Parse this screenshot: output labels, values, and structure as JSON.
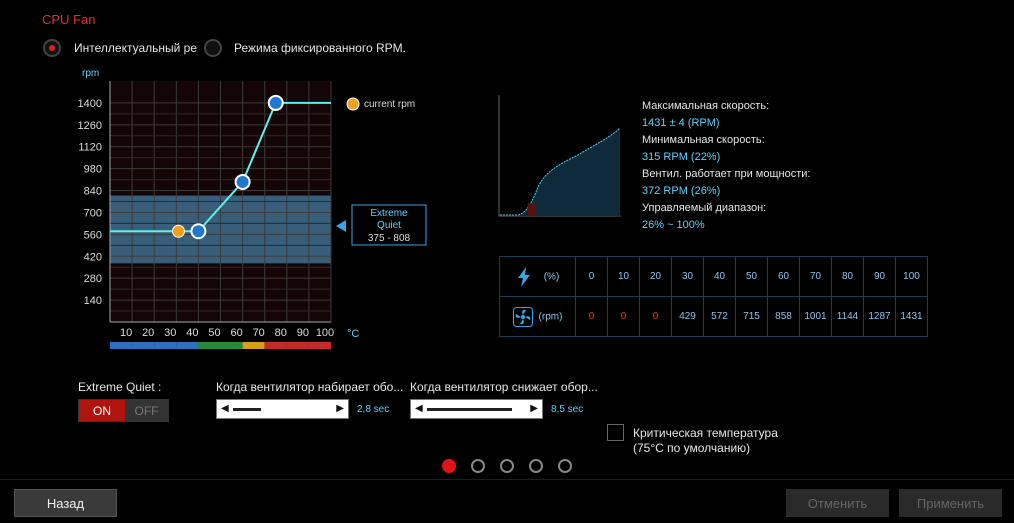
{
  "title": "CPU Fan",
  "modes": [
    {
      "label": "Интеллектуальный ре",
      "selected": true
    },
    {
      "label": "Режима фиксированного RPM.",
      "selected": false
    }
  ],
  "chart_data": {
    "type": "line",
    "ylabel": "rpm",
    "xunit": "°C",
    "yticks": [
      140,
      280,
      420,
      560,
      700,
      840,
      980,
      1120,
      1260,
      1400
    ],
    "xticks": [
      10,
      20,
      30,
      40,
      50,
      60,
      70,
      80,
      90,
      100
    ],
    "xlim": [
      0,
      100
    ],
    "ylim": [
      0,
      1540
    ],
    "series": [
      {
        "points": [
          [
            0,
            580
          ],
          [
            40,
            580
          ],
          [
            60,
            895
          ],
          [
            75,
            1400
          ],
          [
            100,
            1400
          ]
        ]
      }
    ],
    "control_points": [
      [
        40,
        580
      ],
      [
        60,
        895
      ],
      [
        75,
        1400
      ]
    ],
    "current_point": [
      31,
      580
    ],
    "legend": "current rpm",
    "band": {
      "range": [
        375,
        808
      ],
      "label_line1": "Extreme",
      "label_line2": "Quiet",
      "label_range": "375 - 808"
    },
    "temp_bar_colors": [
      "#2f6fc0",
      "#2f6fc0",
      "#2f6fc0",
      "#2f6fc0",
      "#2a8a3a",
      "#2a8a3a",
      "#d7a013",
      "#c42a2a",
      "#c42a2a",
      "#c42a2a"
    ]
  },
  "stats": {
    "max_label": "Максимальная скорость:",
    "max_value": "1431 ± 4 (RPM)",
    "min_label": "Минимальная скорость:",
    "min_value": "315 RPM (22%)",
    "power_label": "Вентил. работает при мощности:",
    "power_value": "372 RPM (26%)",
    "range_label": "Управляемый диапазон:",
    "range_value": "26% ~ 100%"
  },
  "table": {
    "pct_unit": "(%)",
    "rpm_unit": "(rpm)",
    "pct": [
      "0",
      "10",
      "20",
      "30",
      "40",
      "50",
      "60",
      "70",
      "80",
      "90",
      "100"
    ],
    "rpm": [
      "0",
      "0",
      "0",
      "429",
      "572",
      "715",
      "858",
      "1001",
      "1144",
      "1287",
      "1431"
    ]
  },
  "extreme_quiet": {
    "label": "Extreme Quiet :",
    "on": "ON",
    "off": "OFF"
  },
  "ramp_up": {
    "label": "Когда вентилятор набирает обо...",
    "value": "2,8 sec",
    "fraction": 0.28
  },
  "ramp_down": {
    "label": "Когда вентилятор снижает обор...",
    "value": "8,5 sec",
    "fraction": 0.85
  },
  "critical": {
    "line1": "Критическая температура",
    "line2": "(75°C по умолчанию)",
    "checked": false
  },
  "pages": 5,
  "active_page": 0,
  "buttons": {
    "back": "Назад",
    "cancel": "Отменить",
    "apply": "Применить"
  }
}
